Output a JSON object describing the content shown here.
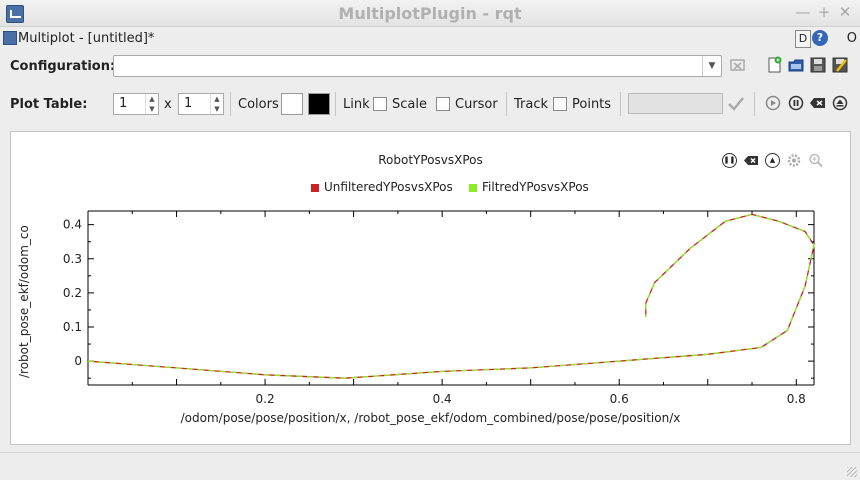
{
  "window": {
    "title": "MultiplotPlugin - rqt"
  },
  "dock": {
    "title": "Multiplot - [untitled]*",
    "d_label": "D",
    "q_label": "?",
    "o_label": "O"
  },
  "config": {
    "label": "Configuration:",
    "value": ""
  },
  "plot_table": {
    "label": "Plot Table:",
    "rows": "1",
    "x_label": "x",
    "cols": "1",
    "colors_label": "Colors",
    "fg_color": "#ffffff",
    "bg_color": "#000000",
    "link_label": "Link",
    "scale_label": "Scale",
    "cursor_label": "Cursor",
    "track_label": "Track",
    "points_label": "Points",
    "track_value": ""
  },
  "plot": {
    "title": "RobotYPosvsXPos",
    "xlabel": "/odom/pose/pose/position/x, /robot_pose_ekf/odom_combined/pose/pose/position/x",
    "ylabel": "/robot_pose_ekf/odom_co",
    "legend": [
      {
        "name": "UnfilteredYPosvsXPos",
        "color": "#cc2222"
      },
      {
        "name": "FiltredYPosvsXPos",
        "color": "#88ee22"
      }
    ]
  },
  "chart_data": {
    "type": "line",
    "title": "RobotYPosvsXPos",
    "xlabel": "/odom/pose/pose/position/x, /robot_pose_ekf/odom_combined/pose/pose/position/x",
    "ylabel": "/robot_pose_ekf/odom_co",
    "xlim": [
      0.0,
      0.82
    ],
    "ylim": [
      -0.07,
      0.44
    ],
    "xticks": [
      0.2,
      0.4,
      0.6,
      0.8
    ],
    "yticks": [
      0,
      0.1,
      0.2,
      0.3,
      0.4
    ],
    "series": [
      {
        "name": "UnfilteredYPosvsXPos",
        "color": "#cc2222",
        "x": [
          0.0,
          0.1,
          0.2,
          0.29,
          0.4,
          0.5,
          0.6,
          0.7,
          0.76,
          0.79,
          0.81,
          0.82,
          0.81,
          0.78,
          0.75,
          0.72,
          0.68,
          0.64,
          0.63,
          0.63
        ],
        "y": [
          0.0,
          -0.02,
          -0.04,
          -0.05,
          -0.03,
          -0.02,
          0.0,
          0.02,
          0.04,
          0.09,
          0.22,
          0.34,
          0.38,
          0.41,
          0.43,
          0.41,
          0.33,
          0.23,
          0.17,
          0.13
        ]
      },
      {
        "name": "FiltredYPosvsXPos",
        "color": "#88ee22",
        "x": [
          0.0,
          0.1,
          0.2,
          0.29,
          0.4,
          0.5,
          0.6,
          0.7,
          0.76,
          0.79,
          0.81,
          0.82,
          0.81,
          0.78,
          0.75,
          0.72,
          0.68,
          0.64,
          0.63,
          0.63
        ],
        "y": [
          0.0,
          -0.02,
          -0.04,
          -0.05,
          -0.03,
          -0.02,
          0.0,
          0.02,
          0.04,
          0.09,
          0.22,
          0.34,
          0.38,
          0.41,
          0.43,
          0.41,
          0.33,
          0.23,
          0.17,
          0.13
        ]
      }
    ]
  }
}
